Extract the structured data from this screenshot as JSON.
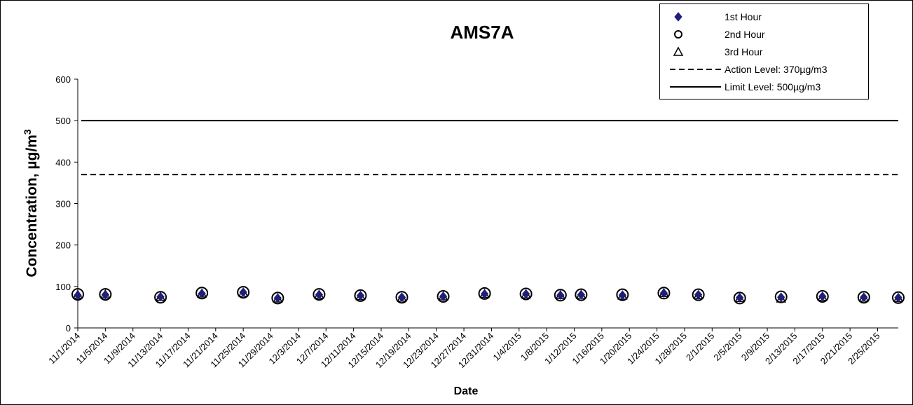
{
  "chart_data": {
    "type": "scatter",
    "title": "AMS7A",
    "xlabel": "Date",
    "ylabel": "Concentration,  µg/m",
    "ylabel_superscript": "3",
    "ylim": [
      0,
      600
    ],
    "yticks": [
      0,
      100,
      200,
      300,
      400,
      500,
      600
    ],
    "xlim": [
      "2014-11-01",
      "2015-02-28"
    ],
    "xticks": [
      "11/1/2014",
      "11/5/2014",
      "11/9/2014",
      "11/13/2014",
      "11/17/2014",
      "11/21/2014",
      "11/25/2014",
      "11/29/2014",
      "12/3/2014",
      "12/7/2014",
      "12/11/2014",
      "12/15/2014",
      "12/19/2014",
      "12/23/2014",
      "12/27/2014",
      "12/31/2014",
      "1/4/2015",
      "1/8/2015",
      "1/12/2015",
      "1/16/2015",
      "1/20/2015",
      "1/24/2015",
      "1/28/2015",
      "2/1/2015",
      "2/5/2015",
      "2/9/2015",
      "2/13/2015",
      "2/17/2015",
      "2/21/2015",
      "2/25/2015"
    ],
    "grid": false,
    "legend_position": "top-right",
    "x": [
      "2014-11-01",
      "2014-11-05",
      "2014-11-13",
      "2014-11-19",
      "2014-11-25",
      "2014-11-30",
      "2014-12-06",
      "2014-12-12",
      "2014-12-18",
      "2014-12-24",
      "2014-12-30",
      "2015-01-05",
      "2015-01-10",
      "2015-01-13",
      "2015-01-19",
      "2015-01-25",
      "2015-01-30",
      "2015-02-05",
      "2015-02-11",
      "2015-02-17",
      "2015-02-23",
      "2015-02-28"
    ],
    "series": [
      {
        "name": "1st Hour",
        "marker": "diamond",
        "color": "#1f1f7a",
        "values": [
          79,
          80,
          75,
          83,
          86,
          72,
          80,
          78,
          74,
          76,
          82,
          82,
          79,
          80,
          79,
          84,
          80,
          73,
          74,
          76,
          74,
          73
        ]
      },
      {
        "name": "2nd Hour",
        "marker": "circle",
        "color": "#000000",
        "values": [
          81,
          81,
          74,
          84,
          86,
          72,
          81,
          78,
          74,
          76,
          83,
          82,
          79,
          80,
          80,
          84,
          80,
          72,
          75,
          76,
          74,
          73
        ]
      },
      {
        "name": "3rd Hour",
        "marker": "triangle",
        "color": "#000000",
        "values": [
          80,
          81,
          75,
          83,
          85,
          71,
          80,
          77,
          73,
          76,
          82,
          81,
          79,
          80,
          78,
          84,
          79,
          72,
          71,
          75,
          73,
          72
        ]
      }
    ],
    "reference_lines": [
      {
        "name": "Action Level: 370µg/m3",
        "value": 370,
        "style": "dashed",
        "color": "#000000"
      },
      {
        "name": "Limit Level: 500µg/m3",
        "value": 500,
        "style": "solid",
        "color": "#000000"
      }
    ]
  }
}
